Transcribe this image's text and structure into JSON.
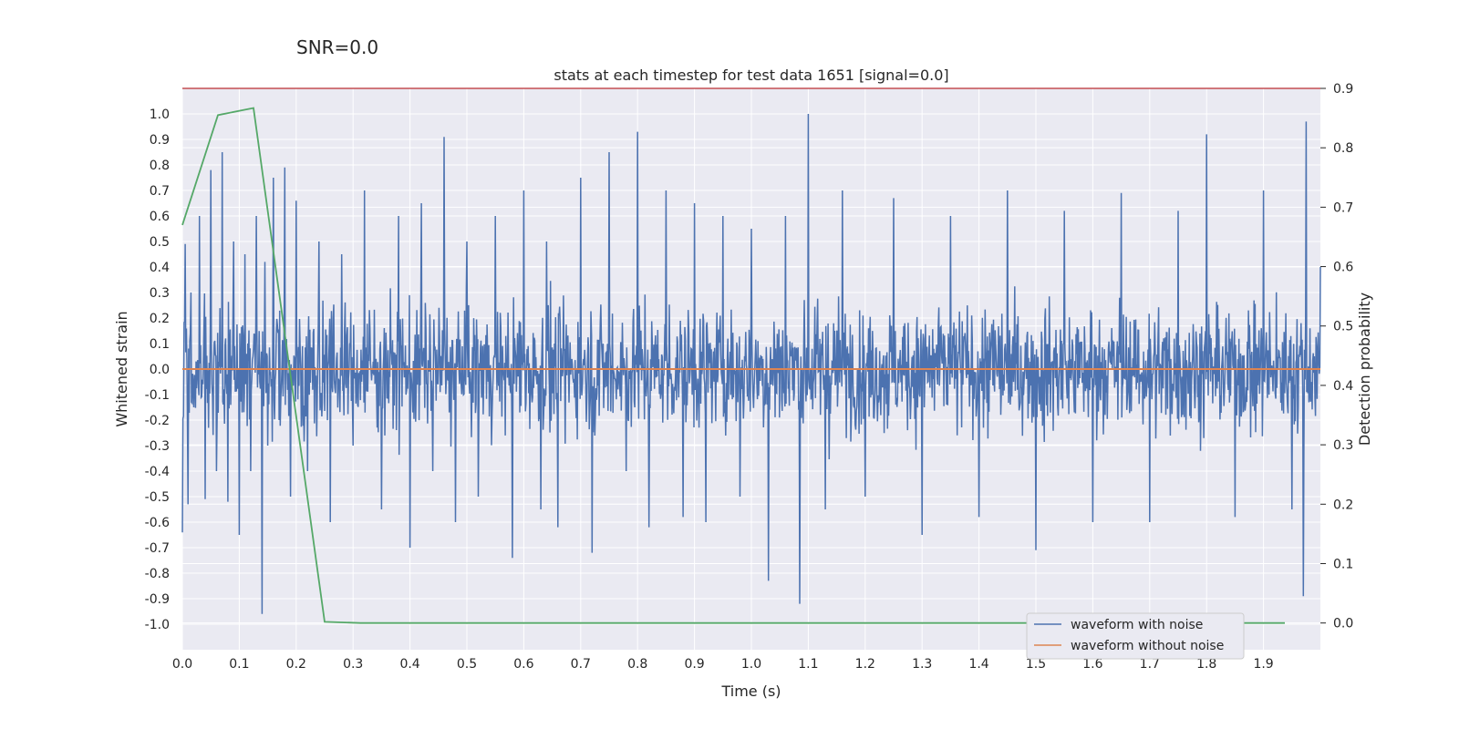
{
  "figure": {
    "suptitle": "SNR=0.0"
  },
  "chart_data": {
    "type": "line",
    "title": "stats at each timestep for test data 1651 [signal=0.0]",
    "xlabel": "Time (s)",
    "ylabel": "Whitened strain",
    "y2label": "Detection probability",
    "xlim": [
      0.0,
      2.0
    ],
    "ylim": [
      -1.1,
      1.1
    ],
    "y2lim": [
      -0.045,
      0.9
    ],
    "x_ticks": [
      "0.0",
      "0.1",
      "0.2",
      "0.3",
      "0.4",
      "0.5",
      "0.6",
      "0.7",
      "0.8",
      "0.9",
      "1.0",
      "1.1",
      "1.2",
      "1.3",
      "1.4",
      "1.5",
      "1.6",
      "1.7",
      "1.8",
      "1.9"
    ],
    "y_ticks": [
      "1.0",
      "0.9",
      "0.8",
      "0.7",
      "0.6",
      "0.5",
      "0.4",
      "0.3",
      "0.2",
      "0.1",
      "0.0",
      "-0.1",
      "-0.2",
      "-0.3",
      "-0.4",
      "-0.5",
      "-0.6",
      "-0.7",
      "-0.8",
      "-0.9",
      "-1.0"
    ],
    "y2_ticks": [
      "0.9",
      "0.8",
      "0.7",
      "0.6",
      "0.5",
      "0.4",
      "0.3",
      "0.2",
      "0.1",
      "0.0"
    ],
    "grid": true,
    "legend_position": "lower-right",
    "series": [
      {
        "name": "waveform with noise",
        "axis": "left",
        "color": "#4c72b0",
        "sampling": "dense noisy strain, approx. 2048 samples over 0-2 s, amplitude mostly within -0.7 to 1.0",
        "x": [
          0.0,
          0.005,
          0.01,
          0.015,
          0.02,
          0.03,
          0.04,
          0.05,
          0.06,
          0.07,
          0.08,
          0.09,
          0.1,
          0.11,
          0.12,
          0.13,
          0.14,
          0.145,
          0.15,
          0.16,
          0.17,
          0.18,
          0.19,
          0.2,
          0.22,
          0.24,
          0.26,
          0.28,
          0.3,
          0.32,
          0.35,
          0.38,
          0.4,
          0.42,
          0.44,
          0.46,
          0.48,
          0.5,
          0.52,
          0.55,
          0.58,
          0.6,
          0.63,
          0.64,
          0.66,
          0.7,
          0.72,
          0.75,
          0.78,
          0.8,
          0.82,
          0.85,
          0.88,
          0.9,
          0.92,
          0.95,
          0.98,
          1.0,
          1.03,
          1.06,
          1.085,
          1.1,
          1.13,
          1.16,
          1.2,
          1.25,
          1.3,
          1.35,
          1.4,
          1.45,
          1.5,
          1.55,
          1.6,
          1.65,
          1.7,
          1.75,
          1.8,
          1.85,
          1.9,
          1.95,
          1.97,
          1.975,
          2.0
        ],
        "values": [
          -0.64,
          0.49,
          -0.53,
          0.3,
          -0.15,
          0.6,
          -0.51,
          0.78,
          -0.4,
          0.85,
          -0.52,
          0.5,
          -0.65,
          0.45,
          -0.4,
          0.6,
          -0.96,
          0.42,
          -0.3,
          0.75,
          -0.2,
          0.79,
          -0.5,
          0.66,
          -0.4,
          0.5,
          -0.6,
          0.45,
          -0.3,
          0.7,
          -0.55,
          0.6,
          -0.7,
          0.65,
          -0.4,
          0.91,
          -0.6,
          0.5,
          -0.5,
          0.6,
          -0.74,
          0.7,
          -0.55,
          0.5,
          -0.62,
          0.75,
          -0.72,
          0.85,
          -0.4,
          0.93,
          -0.62,
          0.7,
          -0.58,
          0.65,
          -0.6,
          0.6,
          -0.5,
          0.55,
          -0.83,
          0.6,
          -0.92,
          1.0,
          -0.55,
          0.7,
          -0.5,
          0.67,
          -0.65,
          0.6,
          -0.58,
          0.7,
          -0.71,
          0.62,
          -0.6,
          0.69,
          -0.6,
          0.62,
          0.92,
          -0.58,
          0.7,
          -0.55,
          -0.89,
          0.97,
          0.4
        ]
      },
      {
        "name": "waveform without noise",
        "axis": "left",
        "color": "#dd8452",
        "x": [
          0.0,
          2.0
        ],
        "values": [
          0.0,
          0.0
        ]
      },
      {
        "name": "",
        "axis": "right",
        "color": "#55a868",
        "x": [
          0.0,
          0.0625,
          0.125,
          0.25,
          0.3125,
          1.9375
        ],
        "values": [
          0.67,
          0.855,
          0.867,
          0.002,
          0.0,
          0.0
        ]
      },
      {
        "name": "",
        "axis": "right",
        "color": "#c44e52",
        "x": [
          0.0,
          2.0
        ],
        "values": [
          0.9,
          0.9
        ]
      }
    ]
  }
}
